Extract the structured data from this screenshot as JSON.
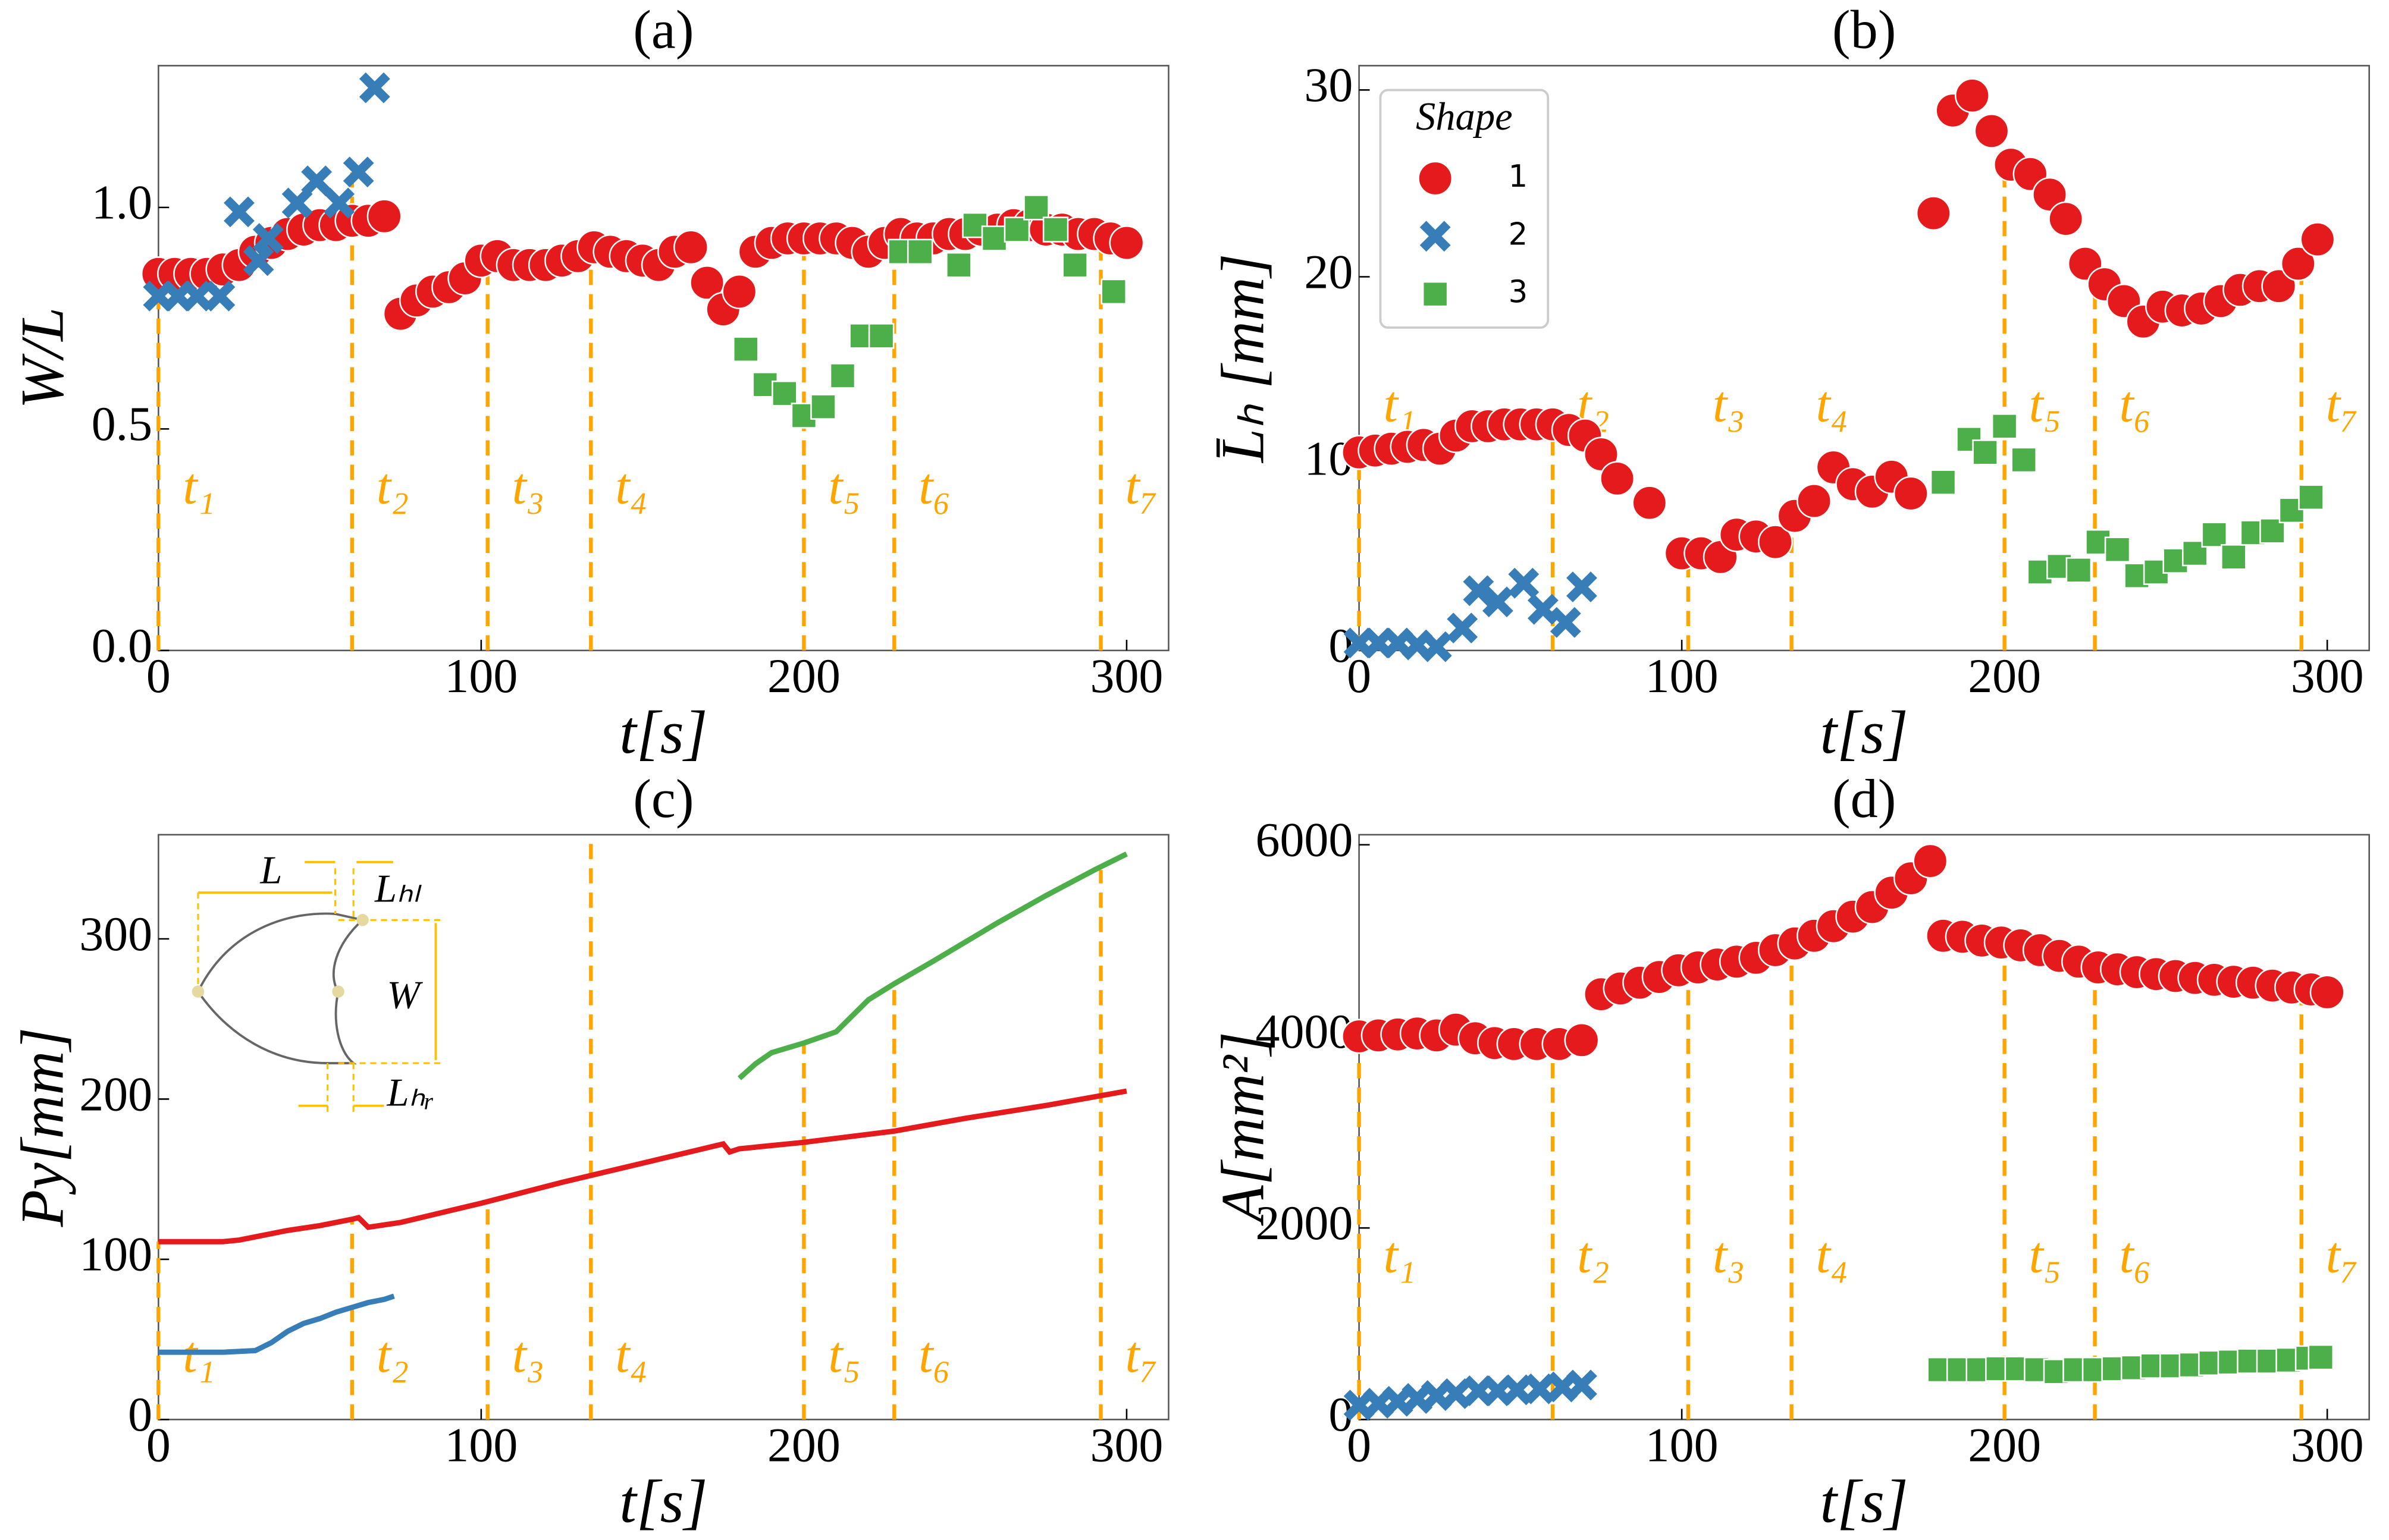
{
  "chart_data": [
    {
      "type": "scatter",
      "title": "(a)",
      "xlabel": "t[s]",
      "ylabel": "W/L",
      "xlim": [
        0,
        313
      ],
      "xticks": [
        0,
        100,
        200,
        300
      ],
      "ylim": [
        0,
        1.32
      ],
      "yticks": [
        {
          "value": 0,
          "label": "0.0"
        },
        0.5,
        {
          "value": 1,
          "label": "1.0"
        }
      ],
      "series": [
        {
          "color": "#e41a1c",
          "marker": "circle",
          "x": [
            0,
            5,
            10,
            15,
            20,
            25,
            30,
            35,
            40,
            45,
            50,
            55,
            60,
            65,
            70,
            75,
            80,
            85,
            90,
            95,
            100,
            105,
            110,
            115,
            120,
            125,
            130,
            135,
            140,
            145,
            150,
            155,
            160,
            165,
            170,
            175,
            180,
            185,
            190,
            195,
            200,
            205,
            210,
            215,
            220,
            225,
            230,
            235,
            240,
            245,
            250,
            255,
            260,
            265,
            270,
            275,
            280,
            285,
            290,
            295,
            300
          ],
          "values": [
            0.85,
            0.85,
            0.85,
            0.85,
            0.86,
            0.87,
            0.9,
            0.92,
            0.94,
            0.95,
            0.96,
            0.96,
            0.97,
            0.97,
            0.98,
            0.76,
            0.79,
            0.81,
            0.82,
            0.84,
            0.88,
            0.89,
            0.87,
            0.87,
            0.87,
            0.88,
            0.89,
            0.91,
            0.9,
            0.89,
            0.88,
            0.87,
            0.9,
            0.91,
            0.83,
            0.77,
            0.81,
            0.9,
            0.92,
            0.93,
            0.93,
            0.93,
            0.93,
            0.92,
            0.9,
            0.92,
            0.94,
            0.93,
            0.93,
            0.94,
            0.94,
            0.95,
            0.95,
            0.96,
            0.96,
            0.95,
            0.95,
            0.94,
            0.94,
            0.93,
            0.92
          ]
        },
        {
          "color": "#377eb8",
          "marker": "x",
          "x": [
            0,
            6,
            12,
            19,
            25,
            31,
            34,
            43,
            49,
            56,
            62,
            67
          ],
          "values": [
            0.8,
            0.8,
            0.8,
            0.8,
            0.99,
            0.88,
            0.93,
            1.01,
            1.06,
            1.01,
            1.08,
            1.27
          ]
        },
        {
          "color": "#4daf4a",
          "marker": "square",
          "x": [
            182,
            188,
            194,
            200,
            206,
            212,
            218,
            224,
            230,
            236,
            248,
            253,
            259,
            266,
            272,
            278,
            284,
            296
          ],
          "values": [
            0.68,
            0.6,
            0.58,
            0.53,
            0.55,
            0.62,
            0.71,
            0.71,
            0.9,
            0.9,
            0.87,
            0.96,
            0.93,
            0.95,
            1.0,
            0.95,
            0.87,
            0.81
          ]
        }
      ],
      "vline_color": "#ffa500",
      "vlines": [
        {
          "x": 0,
          "label": "t₁"
        },
        {
          "x": 60,
          "label": "t₂"
        },
        {
          "x": 102,
          "label": "t₃"
        },
        {
          "x": 134,
          "label": "t₄"
        },
        {
          "x": 200,
          "label": "t₅"
        },
        {
          "x": 228,
          "label": "t₆"
        },
        {
          "x": 292,
          "label": "t₇"
        }
      ]
    },
    {
      "type": "scatter",
      "title": "(b)",
      "xlabel": "t[s]",
      "ylabel": "L̄ₕ [mm]",
      "xlim": [
        0,
        313
      ],
      "xticks": [
        0,
        100,
        200,
        300
      ],
      "ylim": [
        0,
        31.3
      ],
      "yticks": [
        0,
        10,
        20,
        30
      ],
      "legend": {
        "title": "Shape",
        "loc": "upper left"
      },
      "series": [
        {
          "name": "1",
          "color": "#e41a1c",
          "marker": "circle",
          "x": [
            0,
            5,
            10,
            15,
            20,
            25,
            30,
            35,
            40,
            45,
            50,
            55,
            60,
            65,
            70,
            75,
            80,
            90,
            100,
            106,
            112,
            117,
            123,
            129,
            135,
            141,
            147,
            153,
            159,
            165,
            171,
            178,
            184,
            190,
            196,
            202,
            208,
            214,
            219,
            225,
            231,
            237,
            243,
            249,
            255,
            261,
            267,
            273,
            279,
            285,
            291,
            297
          ],
          "values": [
            10.6,
            10.7,
            10.8,
            10.9,
            11,
            10.8,
            11.5,
            12,
            12,
            12.1,
            12.1,
            12.1,
            12.1,
            11.8,
            11.5,
            10.5,
            9.2,
            7.9,
            5.2,
            5.2,
            5,
            6.2,
            6.1,
            5.8,
            7.2,
            8,
            9.8,
            8.9,
            8.5,
            9.3,
            8.4,
            23.4,
            28.9,
            29.7,
            27.8,
            26,
            25.5,
            24.4,
            23.1,
            20.7,
            19.6,
            18.7,
            17.6,
            18.4,
            18.2,
            18.3,
            18.7,
            19.3,
            19.5,
            19.5,
            20.7,
            22
          ]
        },
        {
          "name": "2",
          "color": "#377eb8",
          "marker": "x",
          "x": [
            0,
            6,
            12,
            18,
            24,
            32,
            37,
            43,
            51,
            57,
            64,
            69
          ],
          "values": [
            0.4,
            0.4,
            0.4,
            0.3,
            0.2,
            1.2,
            3.2,
            2.6,
            3.6,
            2.2,
            1.5,
            3.4
          ]
        },
        {
          "name": "3",
          "color": "#4daf4a",
          "marker": "square",
          "x": [
            181,
            189,
            194,
            200,
            206,
            211,
            217,
            223,
            229,
            235,
            241,
            247,
            253,
            259,
            265,
            271,
            277,
            283,
            289,
            295
          ],
          "values": [
            9,
            11.3,
            10.6,
            12,
            10.2,
            4.2,
            4.5,
            4.3,
            5.8,
            5.4,
            4,
            4.2,
            4.8,
            5.2,
            6.2,
            5,
            6.3,
            6.4,
            7.5,
            8.2
          ]
        }
      ],
      "vline_color": "#ffa500",
      "vlines": [
        {
          "x": 0,
          "label": "t₁"
        },
        {
          "x": 60,
          "label": "t₂"
        },
        {
          "x": 102,
          "label": "t₃"
        },
        {
          "x": 134,
          "label": "t₄"
        },
        {
          "x": 200,
          "label": "t₅"
        },
        {
          "x": 228,
          "label": "t₆"
        },
        {
          "x": 292,
          "label": "t₇"
        }
      ]
    },
    {
      "type": "line",
      "title": "(c)",
      "xlabel": "t[s]",
      "ylabel": "Py[mm]",
      "xlim": [
        0,
        313
      ],
      "xticks": [
        0,
        100,
        200,
        300
      ],
      "ylim": [
        0,
        365
      ],
      "yticks": [
        0,
        100,
        200,
        300
      ],
      "inset_labels": [
        "L",
        "Lₕₗ",
        "W",
        "Lₕᵣ"
      ],
      "series": [
        {
          "color": "#377eb8",
          "x": [
            0,
            10,
            20,
            30,
            35,
            40,
            45,
            50,
            55,
            60,
            65,
            70,
            73
          ],
          "values": [
            42,
            42,
            42,
            43,
            48,
            55,
            60,
            63,
            67,
            70,
            73,
            75,
            77
          ]
        },
        {
          "color": "#e41a1c",
          "x": [
            0,
            10,
            20,
            25,
            30,
            40,
            50,
            60,
            62,
            65,
            75,
            100,
            125,
            150,
            175,
            177,
            180,
            200,
            228,
            250,
            275,
            300
          ],
          "values": [
            111,
            111,
            111,
            112,
            114,
            118,
            121,
            125,
            126,
            120,
            123,
            135,
            148,
            160,
            172,
            167,
            169,
            173,
            180,
            188,
            196,
            205
          ]
        },
        {
          "color": "#4daf4a",
          "x": [
            180,
            185,
            190,
            200,
            210,
            215,
            220,
            228,
            240,
            250,
            260,
            275,
            290,
            300
          ],
          "values": [
            213,
            222,
            229,
            235,
            242,
            252,
            262,
            272,
            286,
            298,
            310,
            327,
            343,
            353
          ]
        }
      ],
      "vline_color": "#ffa500",
      "vlines": [
        {
          "x": 0,
          "label": "t₁"
        },
        {
          "x": 60,
          "label": "t₂"
        },
        {
          "x": 102,
          "label": "t₃"
        },
        {
          "x": 134,
          "label": "t₄"
        },
        {
          "x": 200,
          "label": "t₅"
        },
        {
          "x": 228,
          "label": "t₆"
        },
        {
          "x": 292,
          "label": "t₇"
        }
      ]
    },
    {
      "type": "scatter",
      "title": "(d)",
      "xlabel": "t[s]",
      "ylabel": "A[mm²]",
      "xlim": [
        0,
        313
      ],
      "xticks": [
        0,
        100,
        200,
        300
      ],
      "ylim": [
        0,
        6105
      ],
      "yticks": [
        0,
        2000,
        4000,
        6000
      ],
      "series": [
        {
          "color": "#e41a1c",
          "marker": "circle",
          "x": [
            0,
            6,
            12,
            18,
            24,
            30,
            36,
            42,
            48,
            55,
            62,
            69,
            75,
            81,
            87,
            93,
            99,
            105,
            111,
            117,
            123,
            129,
            135,
            141,
            147,
            153,
            159,
            165,
            171,
            177,
            181,
            187,
            193,
            199,
            205,
            211,
            217,
            223,
            229,
            235,
            241,
            247,
            253,
            259,
            265,
            271,
            277,
            283,
            289,
            295,
            300
          ],
          "values": [
            4000,
            4010,
            4020,
            4030,
            4010,
            4070,
            3980,
            3930,
            3920,
            3920,
            3920,
            3960,
            4440,
            4500,
            4560,
            4620,
            4690,
            4720,
            4750,
            4780,
            4820,
            4900,
            4970,
            5050,
            5150,
            5250,
            5350,
            5500,
            5650,
            5830,
            5050,
            5040,
            5000,
            4980,
            4950,
            4900,
            4840,
            4780,
            4720,
            4700,
            4670,
            4650,
            4630,
            4610,
            4590,
            4570,
            4560,
            4530,
            4510,
            4490,
            4460
          ]
        },
        {
          "color": "#377eb8",
          "marker": "x",
          "x": [
            0,
            6,
            12,
            18,
            24,
            30,
            37,
            43,
            49,
            56,
            63,
            69
          ],
          "values": [
            150,
            170,
            190,
            220,
            250,
            270,
            300,
            300,
            310,
            320,
            340,
            360
          ]
        },
        {
          "color": "#4daf4a",
          "marker": "square",
          "x": [
            180,
            186,
            192,
            198,
            204,
            210,
            216,
            222,
            228,
            234,
            240,
            246,
            252,
            258,
            264,
            270,
            276,
            282,
            288,
            294,
            298
          ],
          "values": [
            520,
            520,
            520,
            530,
            530,
            520,
            500,
            520,
            520,
            530,
            540,
            560,
            560,
            570,
            590,
            600,
            610,
            610,
            620,
            640,
            650
          ]
        }
      ],
      "vline_color": "#ffa500",
      "vlines": [
        {
          "x": 0,
          "label": "t₁"
        },
        {
          "x": 60,
          "label": "t₂"
        },
        {
          "x": 102,
          "label": "t₃"
        },
        {
          "x": 134,
          "label": "t₄"
        },
        {
          "x": 200,
          "label": "t₅"
        },
        {
          "x": 228,
          "label": "t₆"
        },
        {
          "x": 292,
          "label": "t₇"
        }
      ]
    }
  ]
}
